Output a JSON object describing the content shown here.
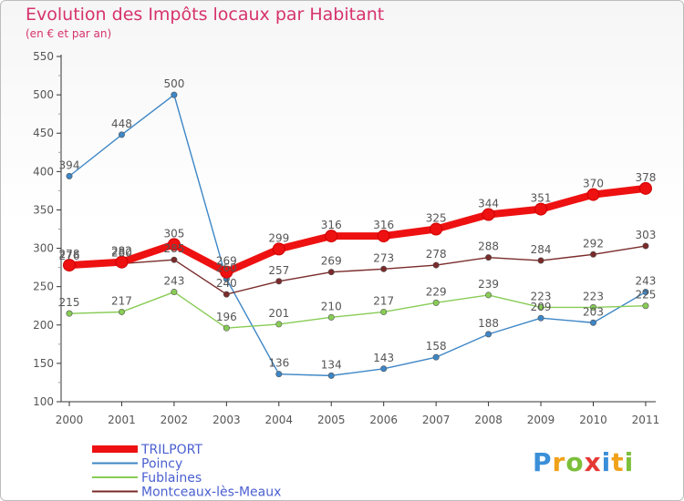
{
  "title": "Evolution des Impôts locaux par Habitant",
  "subtitle": "(en € et par an)",
  "brand": {
    "letters": [
      "P",
      "r",
      "o",
      "x",
      "i",
      "t",
      "i"
    ],
    "colors": [
      "#3b8fd8",
      "#f0a21a",
      "#7cbf3a",
      "#e53935",
      "#3b8fd8",
      "#f0a21a",
      "#7cbf3a"
    ]
  },
  "chart_data": {
    "type": "line",
    "x": [
      "2000",
      "2001",
      "2002",
      "2003",
      "2004",
      "2005",
      "2006",
      "2007",
      "2008",
      "2009",
      "2010",
      "2011"
    ],
    "ylim": [
      100,
      550
    ],
    "yticks": [
      100,
      150,
      200,
      250,
      300,
      350,
      400,
      450,
      500,
      550
    ],
    "grid": false,
    "legend_position": "bottom-left",
    "series": [
      {
        "name": "TRILPORT",
        "color": "#ee1111",
        "emphasis": true,
        "values": [
          278,
          282,
          305,
          269,
          299,
          316,
          316,
          325,
          344,
          351,
          370,
          378
        ]
      },
      {
        "name": "Poincy",
        "color": "#3d86c6",
        "emphasis": false,
        "values": [
          394,
          448,
          500,
          260,
          136,
          134,
          143,
          158,
          188,
          209,
          203,
          243
        ]
      },
      {
        "name": "Fublaines",
        "color": "#88cc55",
        "emphasis": false,
        "values": [
          215,
          217,
          243,
          196,
          201,
          210,
          217,
          229,
          239,
          223,
          223,
          225
        ]
      },
      {
        "name": "Montceaux-lès-Meaux",
        "color": "#7a2a2a",
        "emphasis": false,
        "values": [
          276,
          280,
          285,
          240,
          257,
          269,
          273,
          278,
          288,
          284,
          292,
          303
        ]
      }
    ]
  }
}
